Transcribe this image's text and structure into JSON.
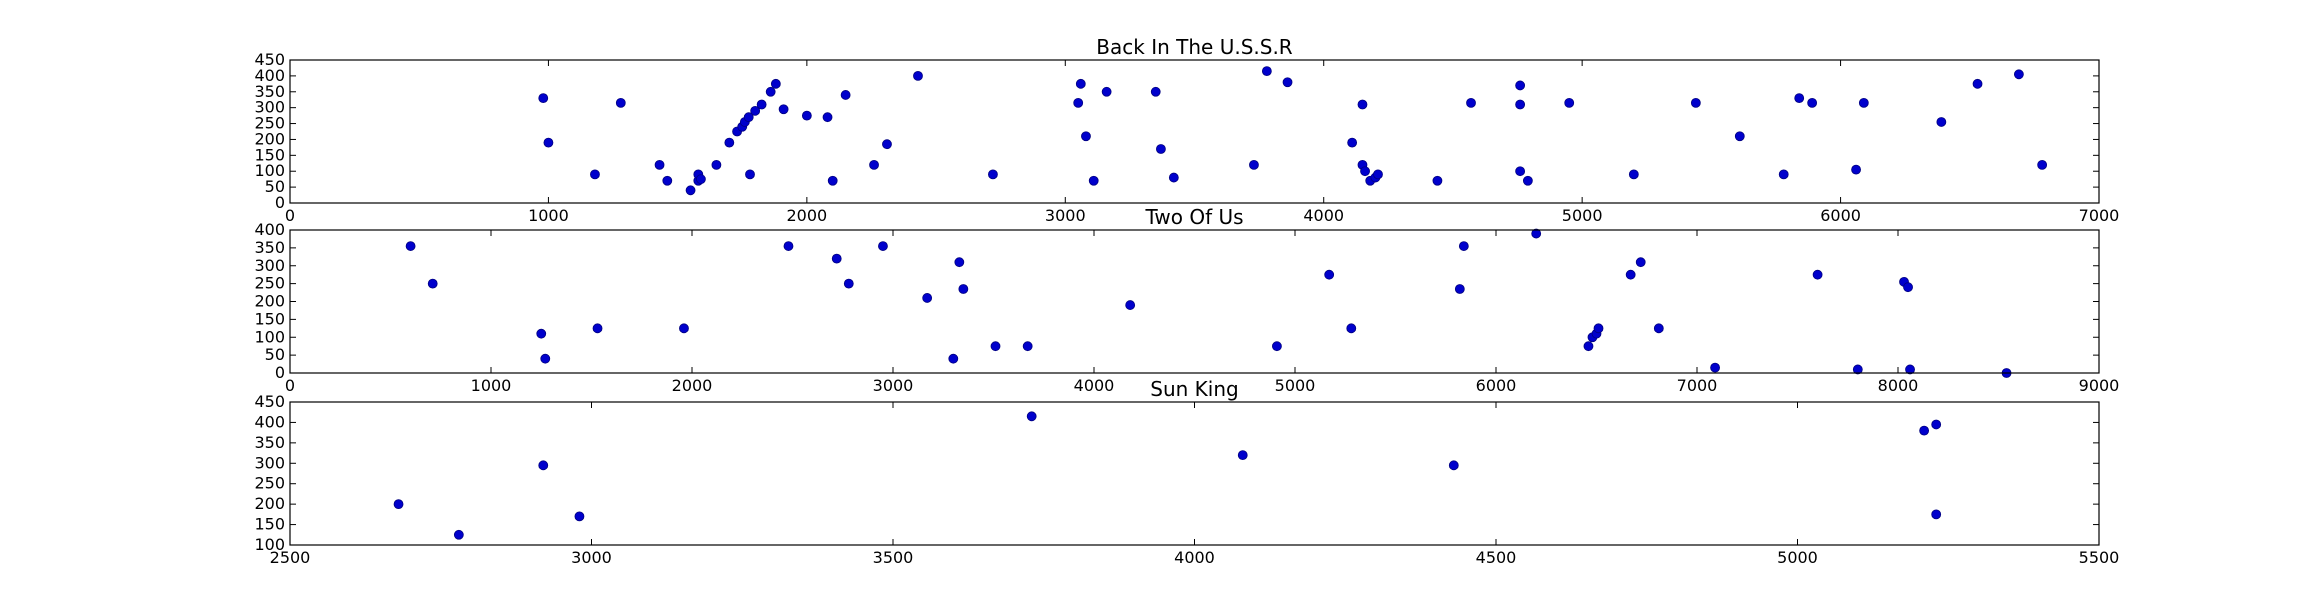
{
  "chart_data": [
    {
      "type": "scatter",
      "title": "Back In The U.S.S.R",
      "xlabel": "",
      "ylabel": "",
      "xlim": [
        0,
        7000
      ],
      "ylim": [
        0,
        450
      ],
      "xticks": [
        0,
        1000,
        2000,
        3000,
        4000,
        5000,
        6000,
        7000
      ],
      "yticks": [
        0,
        50,
        100,
        150,
        200,
        250,
        300,
        350,
        400,
        450
      ],
      "grid": false,
      "color": "#0000cc",
      "points": [
        [
          980,
          330
        ],
        [
          1000,
          190
        ],
        [
          1180,
          90
        ],
        [
          1280,
          315
        ],
        [
          1430,
          120
        ],
        [
          1460,
          70
        ],
        [
          1550,
          40
        ],
        [
          1580,
          70
        ],
        [
          1580,
          90
        ],
        [
          1590,
          75
        ],
        [
          1650,
          120
        ],
        [
          1700,
          190
        ],
        [
          1730,
          225
        ],
        [
          1750,
          240
        ],
        [
          1760,
          255
        ],
        [
          1775,
          270
        ],
        [
          1800,
          290
        ],
        [
          1825,
          310
        ],
        [
          1780,
          90
        ],
        [
          1860,
          350
        ],
        [
          1880,
          375
        ],
        [
          1910,
          295
        ],
        [
          2000,
          275
        ],
        [
          2080,
          270
        ],
        [
          2100,
          70
        ],
        [
          2150,
          340
        ],
        [
          2260,
          120
        ],
        [
          2310,
          185
        ],
        [
          2430,
          400
        ],
        [
          2720,
          90
        ],
        [
          3050,
          315
        ],
        [
          3060,
          375
        ],
        [
          3080,
          210
        ],
        [
          3110,
          70
        ],
        [
          3160,
          350
        ],
        [
          3350,
          350
        ],
        [
          3370,
          170
        ],
        [
          3420,
          80
        ],
        [
          3730,
          120
        ],
        [
          3780,
          415
        ],
        [
          3860,
          380
        ],
        [
          4110,
          190
        ],
        [
          4150,
          310
        ],
        [
          4150,
          120
        ],
        [
          4160,
          100
        ],
        [
          4180,
          70
        ],
        [
          4200,
          80
        ],
        [
          4210,
          90
        ],
        [
          4440,
          70
        ],
        [
          4570,
          315
        ],
        [
          4760,
          370
        ],
        [
          4760,
          310
        ],
        [
          4760,
          100
        ],
        [
          4790,
          70
        ],
        [
          4950,
          315
        ],
        [
          5200,
          90
        ],
        [
          5440,
          315
        ],
        [
          5610,
          210
        ],
        [
          5780,
          90
        ],
        [
          5840,
          330
        ],
        [
          5890,
          315
        ],
        [
          6060,
          105
        ],
        [
          6090,
          315
        ],
        [
          6390,
          255
        ],
        [
          6530,
          375
        ],
        [
          6690,
          405
        ],
        [
          6780,
          120
        ]
      ]
    },
    {
      "type": "scatter",
      "title": "Two Of Us",
      "xlabel": "",
      "ylabel": "",
      "xlim": [
        0,
        9000
      ],
      "ylim": [
        0,
        400
      ],
      "xticks": [
        0,
        1000,
        2000,
        3000,
        4000,
        5000,
        6000,
        7000,
        8000,
        9000
      ],
      "yticks": [
        0,
        50,
        100,
        150,
        200,
        250,
        300,
        350,
        400
      ],
      "grid": false,
      "color": "#0000cc",
      "points": [
        [
          600,
          355
        ],
        [
          710,
          250
        ],
        [
          1250,
          110
        ],
        [
          1270,
          40
        ],
        [
          1530,
          125
        ],
        [
          1960,
          125
        ],
        [
          2480,
          355
        ],
        [
          2720,
          320
        ],
        [
          2780,
          250
        ],
        [
          2950,
          355
        ],
        [
          3170,
          210
        ],
        [
          3300,
          40
        ],
        [
          3330,
          310
        ],
        [
          3350,
          235
        ],
        [
          3510,
          75
        ],
        [
          3670,
          75
        ],
        [
          4180,
          190
        ],
        [
          4910,
          75
        ],
        [
          5170,
          275
        ],
        [
          5280,
          125
        ],
        [
          5820,
          235
        ],
        [
          5840,
          355
        ],
        [
          6200,
          390
        ],
        [
          6460,
          75
        ],
        [
          6480,
          100
        ],
        [
          6500,
          110
        ],
        [
          6510,
          125
        ],
        [
          6670,
          275
        ],
        [
          6720,
          310
        ],
        [
          6810,
          125
        ],
        [
          7090,
          15
        ],
        [
          7600,
          275
        ],
        [
          7800,
          10
        ],
        [
          8030,
          255
        ],
        [
          8050,
          240
        ],
        [
          8060,
          10
        ],
        [
          8540,
          0
        ]
      ]
    },
    {
      "type": "scatter",
      "title": "Sun King",
      "xlabel": "",
      "ylabel": "",
      "xlim": [
        2500,
        5500
      ],
      "ylim": [
        100,
        450
      ],
      "xticks": [
        2500,
        3000,
        3500,
        4000,
        4500,
        5000,
        5500
      ],
      "yticks": [
        100,
        150,
        200,
        250,
        300,
        350,
        400,
        450
      ],
      "grid": false,
      "color": "#0000cc",
      "points": [
        [
          2680,
          200
        ],
        [
          2780,
          125
        ],
        [
          2920,
          295
        ],
        [
          2980,
          170
        ],
        [
          3730,
          415
        ],
        [
          4080,
          320
        ],
        [
          4430,
          295
        ],
        [
          5210,
          380
        ],
        [
          5230,
          395
        ],
        [
          5230,
          175
        ]
      ]
    }
  ]
}
